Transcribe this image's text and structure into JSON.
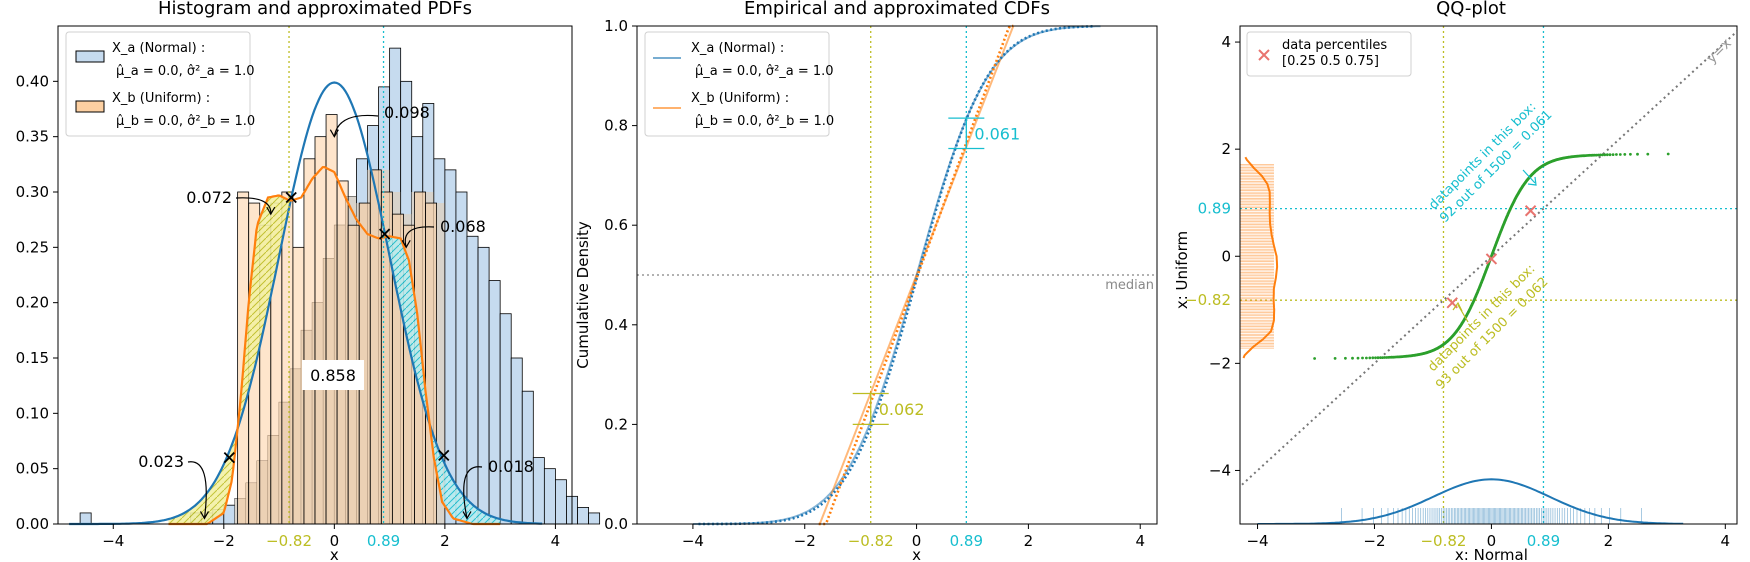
{
  "colors": {
    "normal": "#1f77b4",
    "uniform": "#ff7f0e",
    "normal_fill": "#c6dbef",
    "uniform_fill": "#fdd0a2",
    "overlap_fill": "#d8d3cb",
    "olive": "#bcbd22",
    "cyan": "#17becf",
    "green": "#2ca02c",
    "percentile_marker": "#e8746f",
    "median_line": "#999999",
    "diag_line": "#777777"
  },
  "chart_data": [
    {
      "type": "bar",
      "title": "Histogram and approximated PDFs",
      "xlabel": "x",
      "ylabel": "",
      "xlim": [
        -5.0,
        4.3
      ],
      "ylim": [
        0,
        0.45
      ],
      "xticks": [
        -4,
        -2,
        0,
        2,
        4
      ],
      "yticks": [
        0.0,
        0.05,
        0.1,
        0.15,
        0.2,
        0.25,
        0.3,
        0.35,
        0.4
      ],
      "ytick_labels": [
        "0.00",
        "0.05",
        "0.10",
        "0.15",
        "0.20",
        "0.25",
        "0.30",
        "0.35",
        "0.40"
      ],
      "marked_x": [
        {
          "value": -0.82,
          "label": "-0.82",
          "color": "olive"
        },
        {
          "value": 0.89,
          "label": "0.89",
          "color": "cyan"
        }
      ],
      "legend": [
        {
          "line1": "X_a (Normal) :",
          "line2": "μ̂_a = 0.0, σ̂²_a = 1.0",
          "series": "normal"
        },
        {
          "line1": "X_b (Uniform) :",
          "line2": "μ̂_b = 0.0, σ̂²_b = 1.0",
          "series": "uniform"
        }
      ],
      "histogram_bin_width": 0.2,
      "histogram_normal": {
        "edges_start": -4.6,
        "values": [
          0.01,
          0.0,
          0.0,
          0.0,
          0.0,
          0.0,
          0.0,
          0.0,
          0.0,
          0.0,
          0.01,
          0.01,
          0.013,
          0.017,
          0.023,
          0.037,
          0.057,
          0.08,
          0.11,
          0.14,
          0.175,
          0.2,
          0.24,
          0.27,
          0.296,
          0.33,
          0.36,
          0.395,
          0.43,
          0.4,
          0.35,
          0.38,
          0.33,
          0.32,
          0.3,
          0.26,
          0.25,
          0.22,
          0.19,
          0.15,
          0.12,
          0.06,
          0.05,
          0.04,
          0.025,
          0.015,
          0.01
        ]
      },
      "histogram_uniform": {
        "edges_start": -1.75,
        "values": [
          0.3,
          0.29,
          0.27,
          0.29,
          0.3,
          0.25,
          0.33,
          0.35,
          0.37,
          0.31,
          0.27,
          0.29,
          0.32,
          0.3,
          0.28,
          0.27,
          0.3,
          0.29
        ]
      },
      "pdf_normal": {
        "mu": 0.0,
        "sigma": 1.0
      },
      "pdf_uniform_kde_points": [
        [
          -3.0,
          0.0
        ],
        [
          -2.3,
          0.0
        ],
        [
          -2.0,
          0.01
        ],
        [
          -1.85,
          0.04
        ],
        [
          -1.7,
          0.11
        ],
        [
          -1.55,
          0.2
        ],
        [
          -1.4,
          0.27
        ],
        [
          -1.2,
          0.295
        ],
        [
          -1.0,
          0.297
        ],
        [
          -0.8,
          0.292
        ],
        [
          -0.6,
          0.295
        ],
        [
          -0.4,
          0.312
        ],
        [
          -0.2,
          0.323
        ],
        [
          0.0,
          0.318
        ],
        [
          0.2,
          0.295
        ],
        [
          0.4,
          0.275
        ],
        [
          0.6,
          0.262
        ],
        [
          0.8,
          0.258
        ],
        [
          1.0,
          0.26
        ],
        [
          1.2,
          0.258
        ],
        [
          1.35,
          0.238
        ],
        [
          1.5,
          0.19
        ],
        [
          1.65,
          0.12
        ],
        [
          1.8,
          0.06
        ],
        [
          1.95,
          0.02
        ],
        [
          2.15,
          0.005
        ],
        [
          2.5,
          0.0
        ],
        [
          3.0,
          0.0
        ]
      ],
      "annotations": [
        {
          "text": "0.098",
          "x": 0.0,
          "y": 0.35
        },
        {
          "text": "0.072",
          "x": -1.15,
          "y": 0.28
        },
        {
          "text": "0.068",
          "x": 1.3,
          "y": 0.25
        },
        {
          "text": "0.023",
          "x": -2.35,
          "y": 0.005
        },
        {
          "text": "0.018",
          "x": 2.4,
          "y": 0.005
        },
        {
          "text": "0.858",
          "x": 0.0,
          "y": 0.14
        }
      ],
      "crossings": [
        {
          "x": -1.9,
          "y": 0.06
        },
        {
          "x": -0.78,
          "y": 0.295
        },
        {
          "x": 0.91,
          "y": 0.262
        },
        {
          "x": 1.98,
          "y": 0.062
        }
      ]
    },
    {
      "type": "line",
      "title": "Empirical and approximated CDFs",
      "xlabel": "x",
      "ylabel": "Cumulative Density",
      "xlim": [
        -5.0,
        4.3
      ],
      "ylim": [
        0.0,
        1.0
      ],
      "xticks": [
        -4,
        -2,
        0,
        2,
        4
      ],
      "yticks": [
        0.0,
        0.2,
        0.4,
        0.6,
        0.8,
        1.0
      ],
      "ytick_labels": [
        "0.0",
        "0.2",
        "0.4",
        "0.6",
        "0.8",
        "1.0"
      ],
      "legend": [
        {
          "line1": "X_a (Normal) :",
          "line2": "μ̂_a = 0.0, σ̂²_a = 1.0",
          "series": "normal"
        },
        {
          "line1": "X_b (Uniform) :",
          "line2": "μ̂_b = 0.0, σ̂²_b = 1.0",
          "series": "uniform"
        }
      ],
      "median_label": "median",
      "series": [
        {
          "series": "normal",
          "kind": "normal_cdf",
          "mu": 0.0,
          "sigma": 1.0
        },
        {
          "series": "uniform",
          "kind": "uniform_cdf",
          "low": -1.73,
          "high": 1.73
        },
        {
          "series": "normal",
          "kind": "empirical_normal"
        },
        {
          "series": "uniform",
          "kind": "empirical_uniform"
        }
      ],
      "brackets": [
        {
          "x": -0.82,
          "low": 0.2,
          "high": 0.262,
          "label": "0.062",
          "color": "olive"
        },
        {
          "x": 0.89,
          "low": 0.754,
          "high": 0.815,
          "label": "0.061",
          "color": "cyan"
        }
      ]
    },
    {
      "type": "scatter",
      "title": "QQ-plot",
      "xlabel": "x: Normal",
      "ylabel": "x: Uniform",
      "xlim": [
        -4.3,
        4.2
      ],
      "ylim": [
        -5.0,
        4.3
      ],
      "xticks": [
        -4,
        -2,
        0,
        2,
        4
      ],
      "yticks": [
        -4,
        -2,
        0,
        2,
        4
      ],
      "diag_label": "y=x",
      "legend": [
        {
          "line1": "data percentiles",
          "line2": "[0.25 0.5  0.75]"
        }
      ],
      "percentiles": [
        [
          -0.67,
          -0.87
        ],
        [
          0.0,
          -0.05
        ],
        [
          0.67,
          0.85
        ]
      ],
      "box_lower": {
        "x": -0.82,
        "y": -0.82,
        "text1": "datapoints in this box:",
        "text2": "93 out of 1500 = 0.062"
      },
      "box_upper": {
        "x": 0.89,
        "y": 0.89,
        "text1": "datapoints in this box:",
        "text2": "92 out of 1500 = 0.061"
      }
    }
  ]
}
